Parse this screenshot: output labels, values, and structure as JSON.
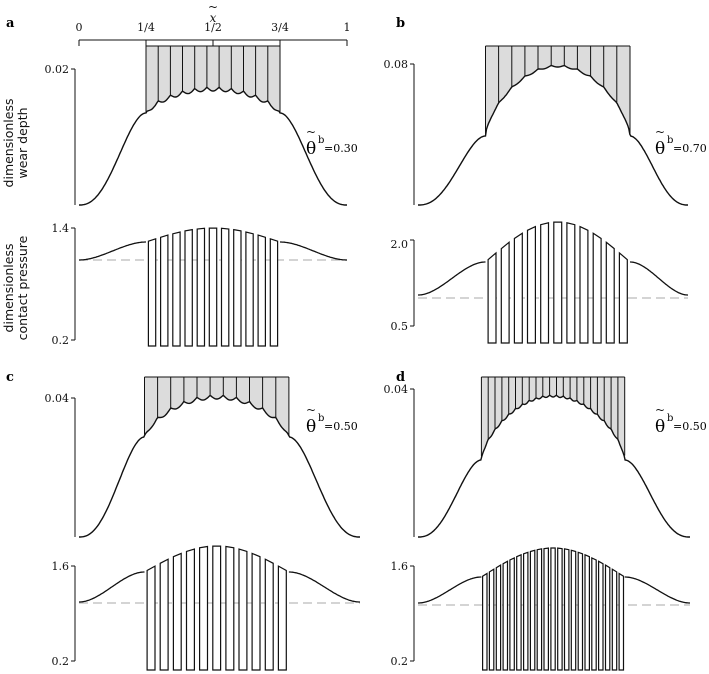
{
  "colors": {
    "ink": "#111111",
    "fill": "#dcdcdc",
    "dash": "#bbbbbb",
    "bg": "#ffffff"
  },
  "figure": {
    "x_axis": {
      "symbol": "x",
      "symbol_mark": "~",
      "tick_labels": [
        "0",
        "1/4",
        "1/2",
        "3/4",
        "1"
      ]
    },
    "ylabel_wear": [
      "dimensionless",
      "wear depth"
    ],
    "ylabel_pressure": [
      "dimensionless",
      "contact pressure"
    ]
  },
  "chart_data": [
    {
      "panel": "a",
      "type": "line",
      "wear": {
        "ymax_label": "0.02",
        "bars": 11,
        "theta_value": "=0.30"
      },
      "pressure": {
        "ytop_label": "1.4",
        "ybottom_label": "0.2",
        "bars": 11
      }
    },
    {
      "panel": "b",
      "type": "line",
      "wear": {
        "ymax_label": "0.08",
        "bars": 11,
        "theta_value": "=0.70"
      },
      "pressure": {
        "ytop_label": "2.0",
        "ybottom_label": "0.5",
        "bars": 11
      }
    },
    {
      "panel": "c",
      "type": "line",
      "wear": {
        "ymax_label": "0.04",
        "bars": 11,
        "theta_value": "=0.50"
      },
      "pressure": {
        "ytop_label": "1.6",
        "ybottom_label": "0.2",
        "bars": 11
      }
    },
    {
      "panel": "d",
      "type": "line",
      "wear": {
        "ymax_label": "0.04",
        "bars": 21,
        "theta_value": "=0.50"
      },
      "pressure": {
        "ytop_label": "1.6",
        "ybottom_label": "0.2",
        "bars": 21
      }
    }
  ]
}
